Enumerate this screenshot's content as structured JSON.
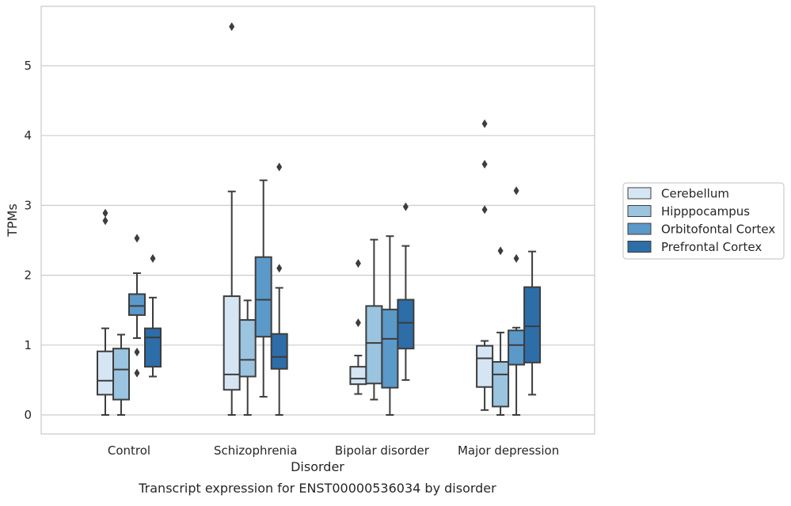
{
  "chart_data": {
    "type": "box",
    "title": "",
    "caption": "Transcript expression for ENST00000536034 by disorder",
    "xlabel": "Disorder",
    "ylabel": "TPMs",
    "ylim": [
      -0.27,
      5.85
    ],
    "yticks": [
      "0",
      "1",
      "2",
      "3",
      "4",
      "5"
    ],
    "categories": [
      "Control",
      "Schizophrenia",
      "Bipolar disorder",
      "Major depression"
    ],
    "grid": "horizontal",
    "legend_position": "right",
    "series": [
      {
        "name": "Cerebellum",
        "color": "#d6e5f3",
        "boxes": [
          {
            "whislo": 0.0,
            "q1": 0.29,
            "med": 0.49,
            "q3": 0.91,
            "whishi": 1.24,
            "fliers": [
              2.78,
              2.89
            ]
          },
          {
            "whislo": 0.0,
            "q1": 0.36,
            "med": 0.58,
            "q3": 1.7,
            "whishi": 3.2,
            "fliers": [
              5.56
            ]
          },
          {
            "whislo": 0.3,
            "q1": 0.44,
            "med": 0.52,
            "q3": 0.69,
            "whishi": 0.85,
            "fliers": [
              1.32,
              2.17
            ]
          },
          {
            "whislo": 0.07,
            "q1": 0.4,
            "med": 0.81,
            "q3": 0.99,
            "whishi": 1.06,
            "fliers": [
              2.94,
              3.59,
              4.17
            ]
          }
        ]
      },
      {
        "name": "Hipppocampus",
        "color": "#9ac4df",
        "boxes": [
          {
            "whislo": 0.0,
            "q1": 0.22,
            "med": 0.65,
            "q3": 0.95,
            "whishi": 1.15,
            "fliers": []
          },
          {
            "whislo": 0.0,
            "q1": 0.55,
            "med": 0.79,
            "q3": 1.36,
            "whishi": 1.64,
            "fliers": []
          },
          {
            "whislo": 0.22,
            "q1": 0.45,
            "med": 1.03,
            "q3": 1.56,
            "whishi": 2.51,
            "fliers": []
          },
          {
            "whislo": 0.0,
            "q1": 0.12,
            "med": 0.58,
            "q3": 0.76,
            "whishi": 1.18,
            "fliers": [
              2.35
            ]
          }
        ]
      },
      {
        "name": "Orbitofontal Cortex",
        "color": "#5b99c9",
        "boxes": [
          {
            "whislo": 1.1,
            "q1": 1.43,
            "med": 1.56,
            "q3": 1.73,
            "whishi": 2.03,
            "fliers": [
              0.6,
              0.9,
              2.53
            ]
          },
          {
            "whislo": 0.26,
            "q1": 1.12,
            "med": 1.65,
            "q3": 2.26,
            "whishi": 3.36,
            "fliers": []
          },
          {
            "whislo": 0.0,
            "q1": 0.39,
            "med": 1.09,
            "q3": 1.51,
            "whishi": 2.56,
            "fliers": []
          },
          {
            "whislo": 0.0,
            "q1": 0.72,
            "med": 1.0,
            "q3": 1.21,
            "whishi": 1.25,
            "fliers": [
              2.24,
              3.21
            ]
          }
        ]
      },
      {
        "name": "Prefrontal Cortex",
        "color": "#2d6da8",
        "boxes": [
          {
            "whislo": 0.55,
            "q1": 0.69,
            "med": 1.11,
            "q3": 1.24,
            "whishi": 1.68,
            "fliers": [
              2.24
            ]
          },
          {
            "whislo": 0.0,
            "q1": 0.66,
            "med": 0.83,
            "q3": 1.16,
            "whishi": 1.82,
            "fliers": [
              2.1,
              3.55
            ]
          },
          {
            "whislo": 0.5,
            "q1": 0.95,
            "med": 1.32,
            "q3": 1.65,
            "whishi": 2.42,
            "fliers": [
              2.98
            ]
          },
          {
            "whislo": 0.29,
            "q1": 0.75,
            "med": 1.27,
            "q3": 1.83,
            "whishi": 2.34,
            "fliers": []
          }
        ]
      }
    ]
  }
}
